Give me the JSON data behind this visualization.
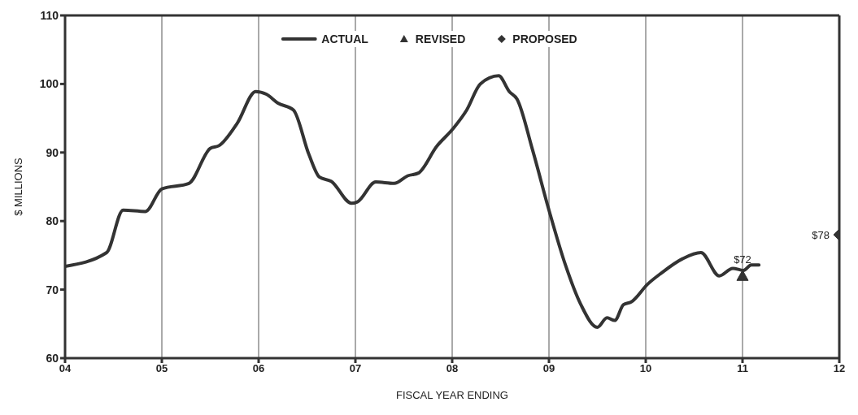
{
  "chart_data": {
    "type": "line",
    "xlabel": "FISCAL YEAR ENDING",
    "ylabel": "$ MILLIONS",
    "xlim": [
      2004,
      2012
    ],
    "xticks": [
      {
        "value": 2004,
        "label": "04"
      },
      {
        "value": 2005,
        "label": "05"
      },
      {
        "value": 2006,
        "label": "06"
      },
      {
        "value": 2007,
        "label": "07"
      },
      {
        "value": 2008,
        "label": "08"
      },
      {
        "value": 2009,
        "label": "09"
      },
      {
        "value": 2010,
        "label": "10"
      },
      {
        "value": 2011,
        "label": "11"
      },
      {
        "value": 2012,
        "label": "12"
      }
    ],
    "ylim": [
      60,
      110
    ],
    "yticks": [
      60,
      70,
      80,
      90,
      100,
      110
    ],
    "grid": "x",
    "legend": "top",
    "series": [
      {
        "name": "ACTUAL",
        "color": "#333333",
        "marker": "none",
        "x": [
          2004.0,
          2004.43,
          2004.6,
          2004.83,
          2005.0,
          2005.28,
          2005.5,
          2005.59,
          2005.78,
          2005.97,
          2006.08,
          2006.2,
          2006.36,
          2006.52,
          2006.63,
          2006.75,
          2006.96,
          2007.02,
          2007.21,
          2007.4,
          2007.54,
          2007.65,
          2007.84,
          2008.01,
          2008.15,
          2008.29,
          2008.48,
          2008.59,
          2008.67,
          2008.83,
          2009.0,
          2009.17,
          2009.33,
          2009.5,
          2009.6,
          2009.68,
          2009.77,
          2009.85,
          2010.02,
          2010.16,
          2010.38,
          2010.57,
          2010.76,
          2010.9,
          2011.01,
          2011.09,
          2011.17
        ],
        "values": [
          73.4,
          75.4,
          81.6,
          81.4,
          84.7,
          85.5,
          90.6,
          91,
          94.3,
          98.9,
          98.5,
          97.2,
          96.2,
          89.7,
          86.4,
          85.8,
          82.6,
          82.8,
          85.7,
          85.5,
          86.6,
          87,
          90.9,
          93.5,
          96.2,
          100,
          101.2,
          98.9,
          97.8,
          90.4,
          81.6,
          73.6,
          67.8,
          64.5,
          65.9,
          65.5,
          67.8,
          68.2,
          70.8,
          72.4,
          74.5,
          75.4,
          72,
          73.1,
          72.8,
          73.6,
          73.6
        ]
      },
      {
        "name": "REVISED",
        "type": "scatter",
        "color": "#333333",
        "marker": "triangle",
        "x": [
          2011
        ],
        "values": [
          72
        ],
        "value_labels": [
          "$72"
        ]
      },
      {
        "name": "PROPOSED",
        "type": "scatter",
        "color": "#333333",
        "marker": "diamond",
        "x": [
          2012
        ],
        "values": [
          78
        ],
        "value_labels": [
          "$78"
        ]
      }
    ]
  }
}
